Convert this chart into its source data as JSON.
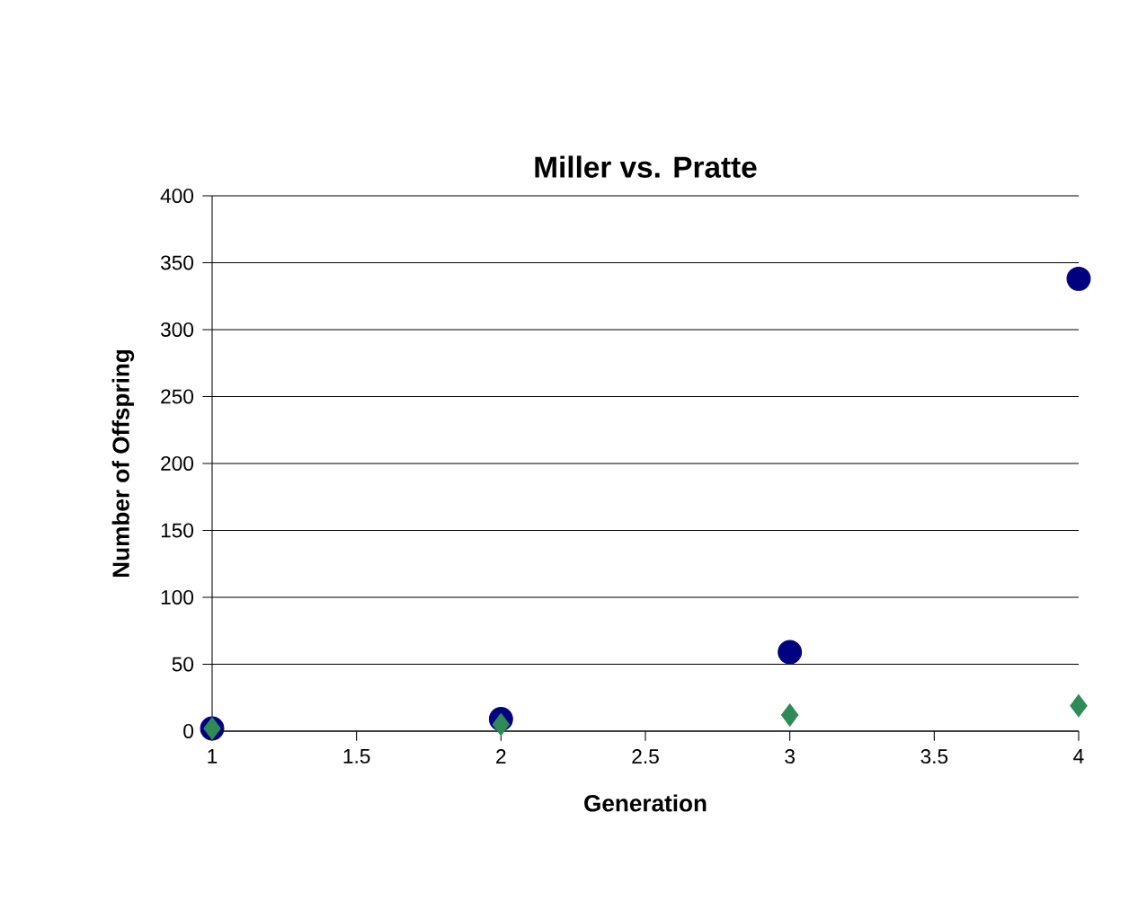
{
  "chart_data": {
    "type": "scatter",
    "title": "Miller vs. Pratte",
    "xlabel": "Generation",
    "ylabel": "Number of Offspring",
    "xlim": [
      1,
      4
    ],
    "xticks": [
      1,
      1.5,
      2,
      2.5,
      3,
      3.5,
      4
    ],
    "ylim": [
      0,
      400
    ],
    "yticks": [
      0,
      50,
      100,
      150,
      200,
      250,
      300,
      350,
      400
    ],
    "grid": "y",
    "series": [
      {
        "color": "#000080",
        "marker": "circle",
        "x": [
          1,
          2,
          3,
          4
        ],
        "values": [
          2,
          9,
          59,
          338
        ]
      },
      {
        "color": "#2e8b57",
        "marker": "diamond",
        "x": [
          1,
          2,
          3,
          4
        ],
        "values": [
          2,
          5,
          12,
          19
        ]
      }
    ]
  }
}
